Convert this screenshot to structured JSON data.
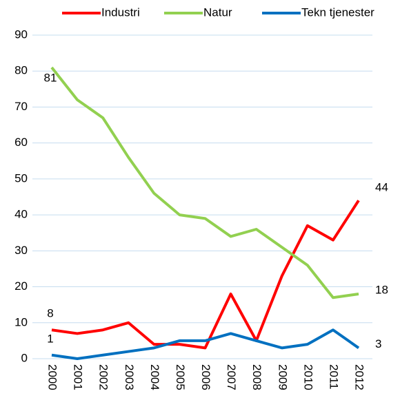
{
  "chart_data": {
    "type": "line",
    "categories": [
      "2000",
      "2001",
      "2002",
      "2003",
      "2004",
      "2005",
      "2006",
      "2007",
      "2008",
      "2009",
      "2010",
      "2011",
      "2012"
    ],
    "series": [
      {
        "name": "Industri",
        "color": "#ff0000",
        "values": [
          8,
          7,
          8,
          10,
          4,
          4,
          3,
          18,
          5,
          23,
          37,
          33,
          44
        ],
        "value_labels": [
          "8",
          null,
          null,
          null,
          null,
          null,
          null,
          null,
          null,
          null,
          null,
          null,
          "44"
        ]
      },
      {
        "name": "Natur",
        "color": "#92d050",
        "values": [
          81,
          72,
          67,
          56,
          46,
          40,
          39,
          34,
          36,
          31,
          26,
          17,
          18
        ],
        "value_labels": [
          "81",
          null,
          null,
          null,
          null,
          null,
          null,
          null,
          null,
          null,
          null,
          null,
          "18"
        ]
      },
      {
        "name": "Tekn tjenester",
        "color": "#0070c0",
        "values": [
          1,
          0,
          1,
          2,
          3,
          5,
          5,
          7,
          5,
          3,
          4,
          8,
          3
        ],
        "value_labels": [
          "1",
          null,
          null,
          null,
          null,
          null,
          null,
          null,
          null,
          null,
          null,
          null,
          "3"
        ]
      }
    ],
    "ylim": [
      0,
      90
    ],
    "yticks": [
      0,
      10,
      20,
      30,
      40,
      50,
      60,
      70,
      80,
      90
    ],
    "grid": true,
    "legend": "top"
  }
}
